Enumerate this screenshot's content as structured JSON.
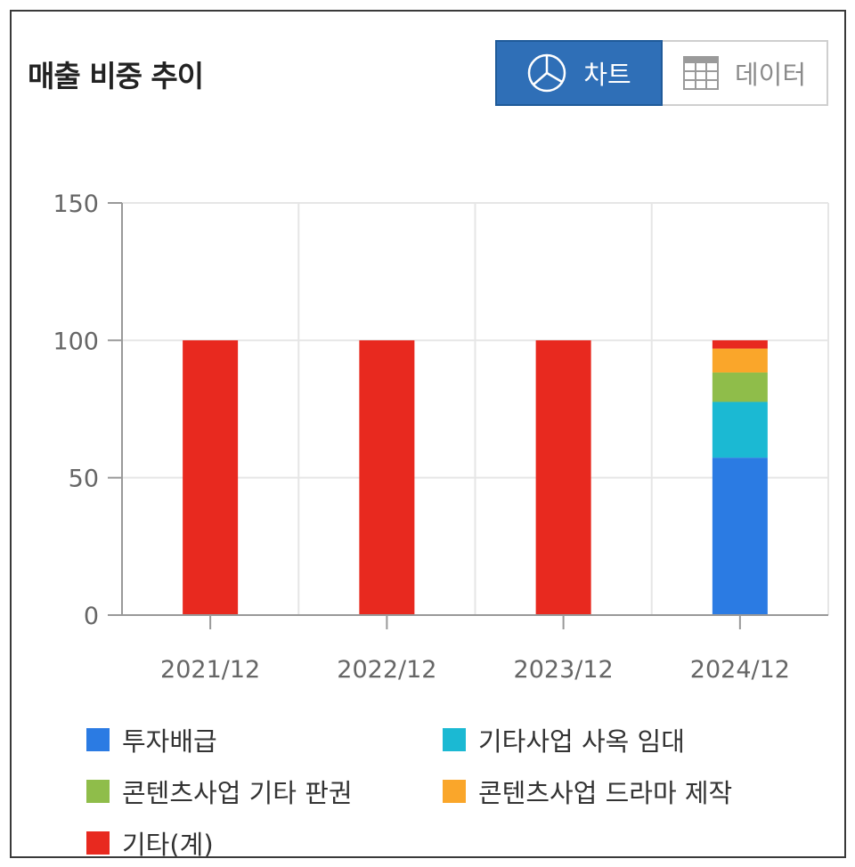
{
  "header": {
    "title": "매출 비중 추이"
  },
  "toggle": {
    "chart_label": "차트",
    "data_label": "데이터",
    "active": "chart",
    "chart_icon": "pie-chart-icon",
    "data_icon": "table-grid-icon"
  },
  "chart_data": {
    "type": "bar",
    "stacked": true,
    "title": "",
    "xlabel": "",
    "ylabel": "",
    "categories": [
      "2021/12",
      "2022/12",
      "2023/12",
      "2024/12"
    ],
    "ylim": [
      0,
      150
    ],
    "yticks": [
      0,
      50,
      100,
      150
    ],
    "grid": true,
    "legend_position": "bottom",
    "series": [
      {
        "name": "투자배급",
        "color": "#2b7be3",
        "values": [
          0,
          0,
          0,
          57.3
        ]
      },
      {
        "name": "기타사업 사옥 임대",
        "color": "#1bb9d3",
        "values": [
          0,
          0,
          0,
          20.3
        ]
      },
      {
        "name": "콘텐츠사업 기타 판권",
        "color": "#8fbd4a",
        "values": [
          0,
          0,
          0,
          10.7
        ]
      },
      {
        "name": "콘텐츠사업 드라마 제작",
        "color": "#faa62a",
        "values": [
          0,
          0,
          0,
          8.7
        ]
      },
      {
        "name": "기타(계)",
        "color": "#e8291f",
        "values": [
          100,
          100,
          100,
          3.0
        ]
      }
    ]
  }
}
